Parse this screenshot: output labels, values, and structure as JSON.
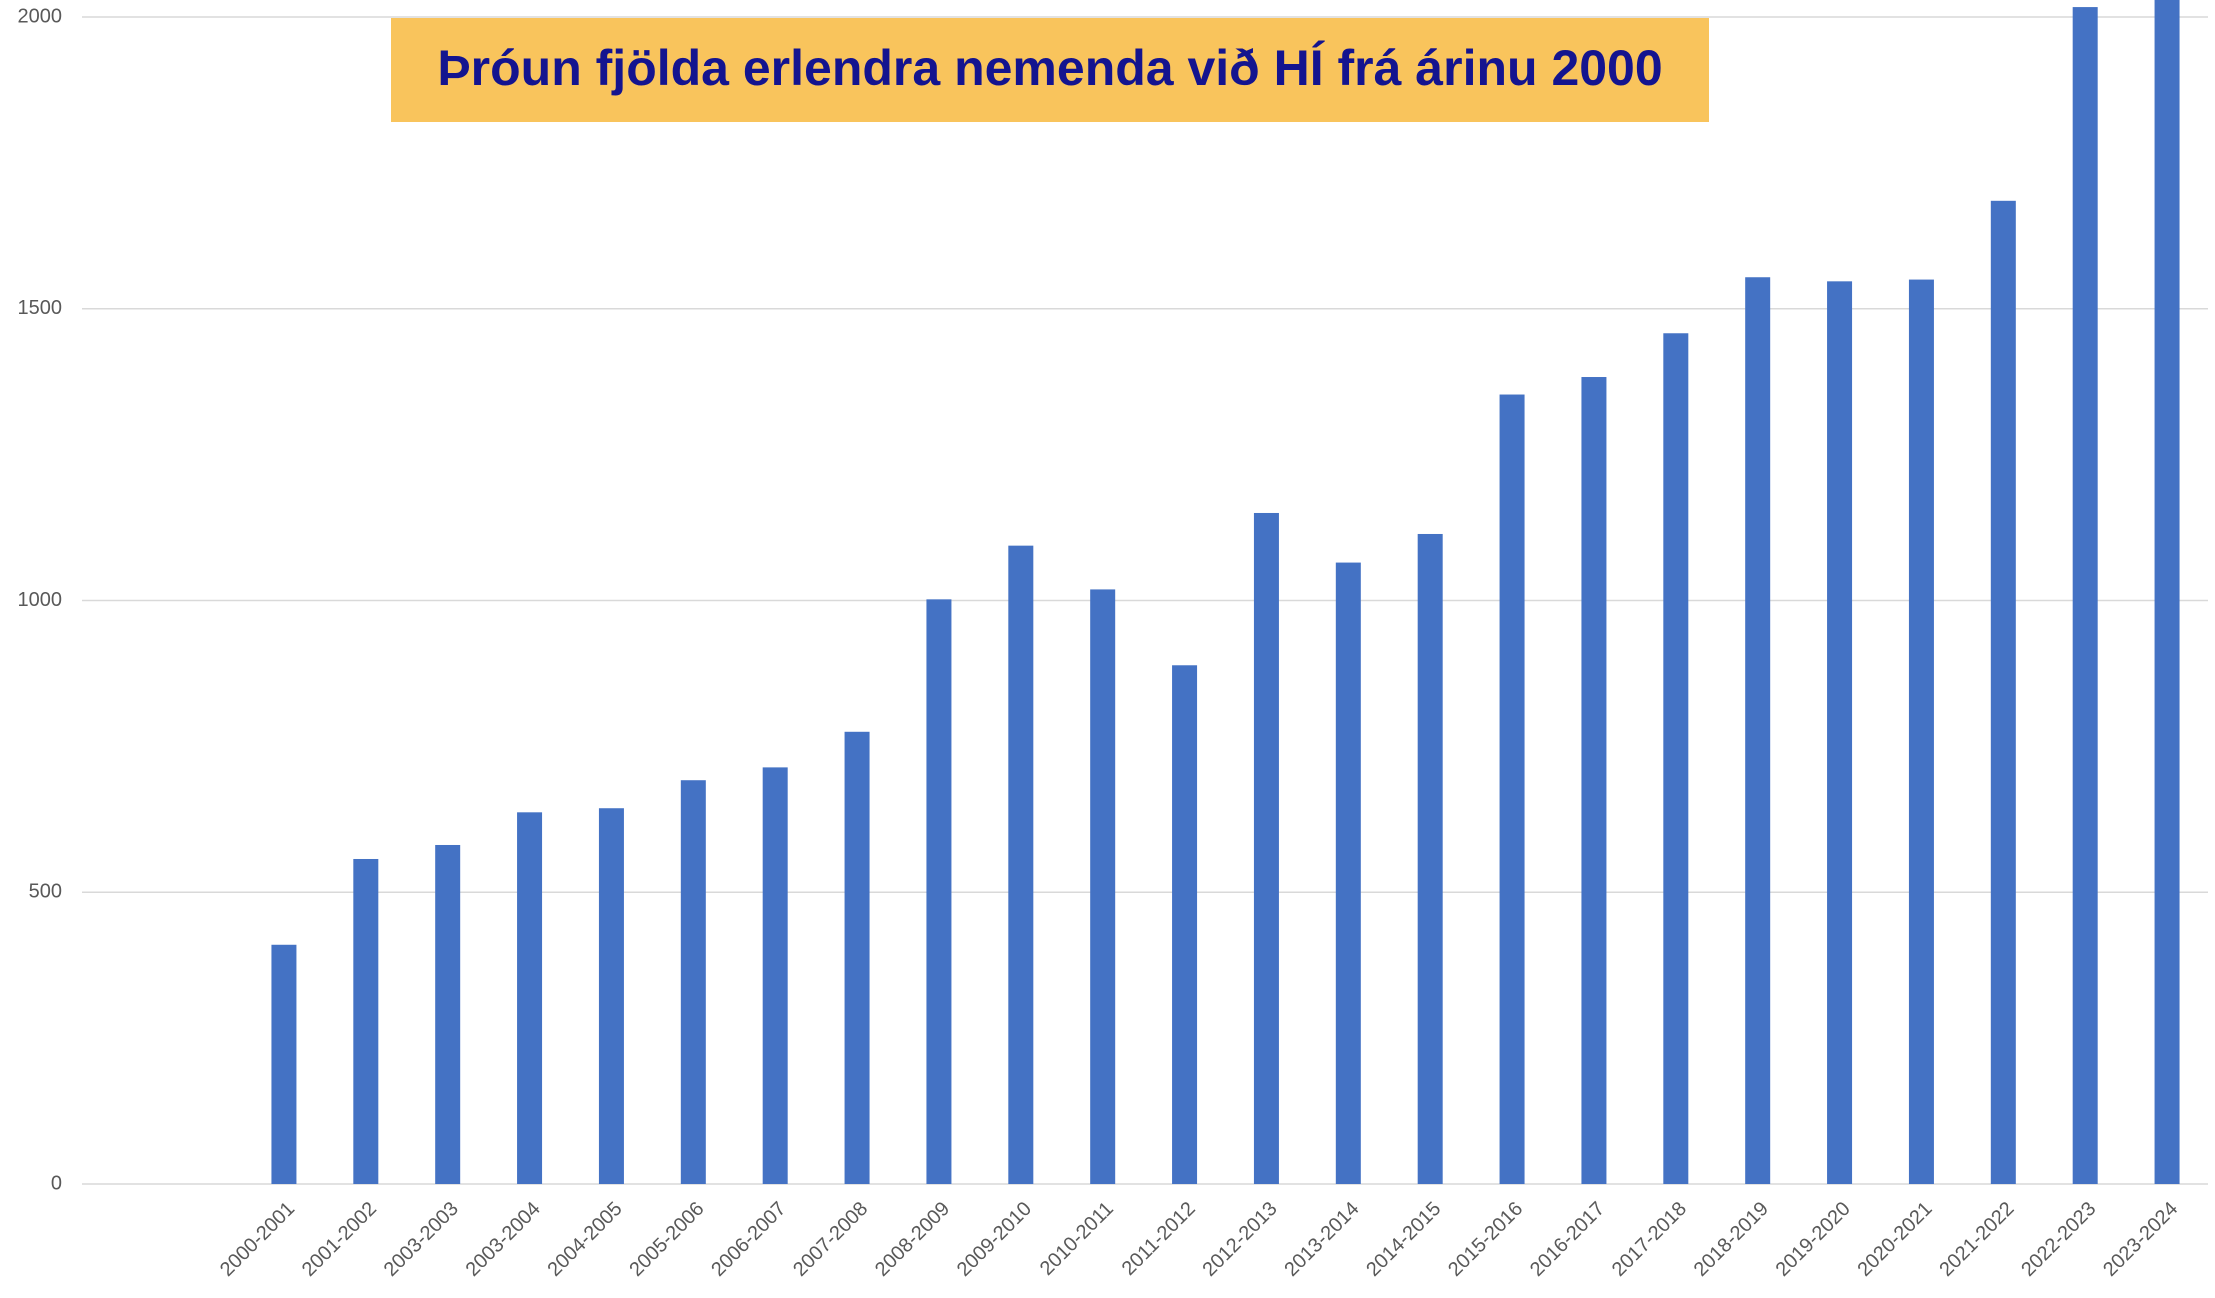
{
  "chart_data": {
    "type": "bar",
    "title": "Þróun fjölda erlendra nemenda við HÍ frá árinu 2000",
    "categories": [
      "2000-2001",
      "2001-2002",
      "2003-2003",
      "2003-2004",
      "2004-2005",
      "2005-2006",
      "2006-2007",
      "2007-2008",
      "2008-2009",
      "2009-2010",
      "2010-2011",
      "2011-2012",
      "2012-2013",
      "2013-2014",
      "2014-2015",
      "2015-2016",
      "2016-2017",
      "2017-2018",
      "2018-2019",
      "2019-2020",
      "2020-2021",
      "2021-2022",
      "2022-2023",
      "2023-2024"
    ],
    "values": [
      410,
      557,
      581,
      637,
      644,
      692,
      714,
      775,
      1002,
      1094,
      1019,
      889,
      1150,
      1065,
      1114,
      1353,
      1383,
      1458,
      1554,
      1547,
      1550,
      1685,
      2017,
      2050
    ],
    "color": "#4472c4",
    "ylim": [
      0,
      2000
    ],
    "yticks": [
      0,
      500,
      1000,
      1500,
      2000
    ],
    "grid": true
  }
}
